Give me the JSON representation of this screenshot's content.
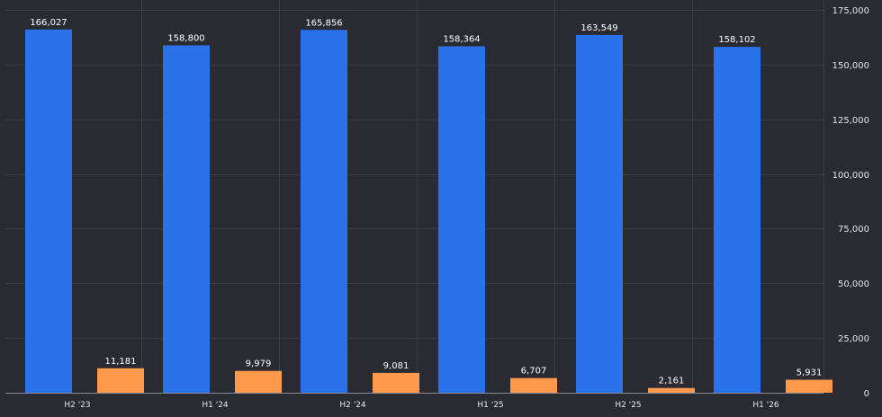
{
  "chart_data": {
    "type": "bar",
    "categories": [
      "H2 '23",
      "H1 '24",
      "H2 '24",
      "H1 '25",
      "H2 '25",
      "H1 '26"
    ],
    "series": [
      {
        "values": [
          166027,
          158800,
          165856,
          158364,
          163549,
          158102
        ],
        "color": "#2a72ea"
      },
      {
        "values": [
          11181,
          9979,
          9081,
          6707,
          2161,
          5931
        ],
        "color": "#ff9a4d"
      }
    ],
    "data_labels": [
      [
        "166,027",
        "158,800",
        "165,856",
        "158,364",
        "163,549",
        "158,102"
      ],
      [
        "11,181",
        "9,979",
        "9,081",
        "6,707",
        "2,161",
        "5,931"
      ]
    ],
    "ylim": [
      0,
      175000
    ],
    "yticks": [
      0,
      25000,
      50000,
      75000,
      100000,
      125000,
      150000,
      175000
    ],
    "ytick_labels": [
      "0",
      "25,000",
      "50,000",
      "75,000",
      "100,000",
      "125,000",
      "150,000",
      "175,000"
    ],
    "y_axis_side": "right",
    "grid": true,
    "background": "#2a2a33",
    "title": "",
    "xlabel": "",
    "ylabel": ""
  }
}
